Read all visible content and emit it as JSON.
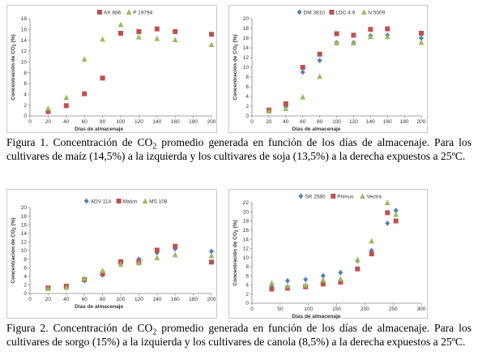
{
  "figure1": {
    "caption_prefix": "Figura 1. Concentración de CO",
    "caption_sub": "2",
    "caption_rest": " promedio generada en función de los días de almacenaje. Para los cultivares de maíz (14,5%) a la izquierda y los cultivares de soja (13,5%) a la derecha expuestos a 25ºC."
  },
  "figure2": {
    "caption_prefix": "Figura 2. Concentración de CO",
    "caption_sub": "2",
    "caption_rest": " promedio generada en función de los días de almacenaje. Para los cultivares de sorgo (15%) a la izquierda y los cultivares de canola (8,5%) a la derecha expuestos a 25ºC."
  },
  "colors": {
    "red": "#c0504d",
    "green": "#9bbb59",
    "blue": "#4f81bd",
    "axis": "#868686"
  },
  "chart_data": [
    {
      "id": "maiz",
      "type": "scatter",
      "xlabel": "Días de almacenaje",
      "ylabel": "Concentración de CO2 (%)",
      "xlim": [
        0,
        200
      ],
      "xticks": [
        0,
        20,
        40,
        60,
        80,
        100,
        120,
        140,
        160,
        180,
        200
      ],
      "ylim": [
        0,
        18
      ],
      "yticks": [
        0,
        2,
        4,
        6,
        8,
        10,
        12,
        14,
        16,
        18
      ],
      "legend": "top",
      "series": [
        {
          "name": "AX 886",
          "marker": "square",
          "color": "#c0504d",
          "x": [
            20,
            40,
            60,
            80,
            100,
            120,
            140,
            160,
            200
          ],
          "y": [
            0.8,
            1.9,
            4.1,
            7.0,
            15.3,
            15.6,
            16.1,
            15.6,
            15.1
          ]
        },
        {
          "name": "P 19794",
          "marker": "triangle",
          "color": "#9bbb59",
          "x": [
            20,
            40,
            60,
            80,
            100,
            120,
            140,
            160,
            200
          ],
          "y": [
            1.4,
            3.4,
            10.5,
            14.2,
            16.9,
            14.6,
            14.3,
            14.1,
            13.2
          ]
        }
      ]
    },
    {
      "id": "soja",
      "type": "scatter",
      "xlabel": "Días de almacenaje",
      "ylabel": "Concentración de CO2 (%)",
      "xlim": [
        0,
        200
      ],
      "xticks": [
        0,
        20,
        40,
        60,
        80,
        100,
        120,
        140,
        160,
        180,
        200
      ],
      "ylim": [
        0,
        20
      ],
      "yticks": [
        0,
        2,
        4,
        6,
        8,
        10,
        12,
        14,
        16,
        18,
        20
      ],
      "legend": "top",
      "series": [
        {
          "name": "DM 3810",
          "marker": "diamond",
          "color": "#4f81bd",
          "x": [
            20,
            40,
            60,
            80,
            100,
            120,
            140,
            160,
            200
          ],
          "y": [
            1.1,
            1.9,
            9.0,
            11.4,
            15.1,
            15.1,
            16.5,
            16.6,
            16.0
          ]
        },
        {
          "name": "LDC 4.9",
          "marker": "square",
          "color": "#c0504d",
          "x": [
            20,
            40,
            60,
            80,
            100,
            120,
            140,
            160,
            200
          ],
          "y": [
            1.2,
            2.5,
            10.0,
            12.7,
            16.9,
            16.6,
            17.8,
            17.9,
            17.0
          ]
        },
        {
          "name": "N 5009",
          "marker": "triangle",
          "color": "#9bbb59",
          "x": [
            20,
            40,
            60,
            80,
            100,
            120,
            140,
            160,
            200
          ],
          "y": [
            1.0,
            1.5,
            3.9,
            8.1,
            15.0,
            15.0,
            16.3,
            16.3,
            15.1
          ]
        }
      ]
    },
    {
      "id": "sorgo",
      "type": "scatter",
      "xlabel": "Días de almacenaje",
      "ylabel": "Concentración de CO2 (%)",
      "xlim": [
        0,
        200
      ],
      "xticks": [
        0,
        20,
        40,
        60,
        80,
        100,
        120,
        140,
        160,
        180,
        200
      ],
      "ylim": [
        0,
        20
      ],
      "yticks": [
        0,
        2,
        4,
        6,
        8,
        10,
        12,
        14,
        16,
        18,
        20
      ],
      "legend": "top",
      "series": [
        {
          "name": "ADV 114",
          "marker": "diamond",
          "color": "#4f81bd",
          "x": [
            20,
            40,
            60,
            80,
            100,
            120,
            140,
            160,
            200
          ],
          "y": [
            1.2,
            1.5,
            3.0,
            4.3,
            7.0,
            8.0,
            9.5,
            10.4,
            9.8
          ]
        },
        {
          "name": "Malon",
          "marker": "square",
          "color": "#c0504d",
          "x": [
            20,
            40,
            60,
            80,
            100,
            120,
            140,
            160,
            200
          ],
          "y": [
            1.3,
            1.7,
            3.2,
            4.6,
            7.4,
            7.4,
            10.1,
            11.0,
            7.3
          ]
        },
        {
          "name": "MS 108",
          "marker": "triangle",
          "color": "#9bbb59",
          "x": [
            20,
            40,
            60,
            80,
            100,
            120,
            140,
            160,
            200
          ],
          "y": [
            1.1,
            1.4,
            3.5,
            5.3,
            6.8,
            7.1,
            8.3,
            9.0,
            8.8
          ]
        }
      ]
    },
    {
      "id": "canola",
      "type": "scatter",
      "xlabel": "Días de almacenaje",
      "ylabel": "Concentración de CO2 (%)",
      "xlim": [
        0,
        300
      ],
      "xticks": [
        0,
        50,
        100,
        150,
        200,
        250,
        300
      ],
      "ylim": [
        0,
        22
      ],
      "yticks": [
        0,
        2,
        4,
        6,
        8,
        10,
        12,
        14,
        16,
        18,
        20,
        22
      ],
      "legend": "top",
      "series": [
        {
          "name": "SR 2580",
          "marker": "diamond",
          "color": "#4f81bd",
          "x": [
            35,
            63,
            95,
            126,
            157,
            187,
            212,
            240,
            255
          ],
          "y": [
            3.9,
            4.9,
            5.2,
            6.0,
            6.7,
            9.3,
            11.5,
            17.5,
            20.3
          ]
        },
        {
          "name": "Primus",
          "marker": "square",
          "color": "#c0504d",
          "x": [
            35,
            63,
            95,
            126,
            157,
            187,
            212,
            240,
            255
          ],
          "y": [
            3.1,
            3.3,
            3.6,
            4.2,
            4.6,
            7.5,
            10.8,
            19.8,
            18.0
          ]
        },
        {
          "name": "Vectra",
          "marker": "triangle",
          "color": "#9bbb59",
          "x": [
            35,
            63,
            95,
            126,
            157,
            187,
            212,
            240,
            255
          ],
          "y": [
            4.4,
            3.8,
            4.0,
            5.1,
            5.3,
            9.6,
            13.6,
            22.0,
            19.4
          ]
        }
      ]
    }
  ]
}
